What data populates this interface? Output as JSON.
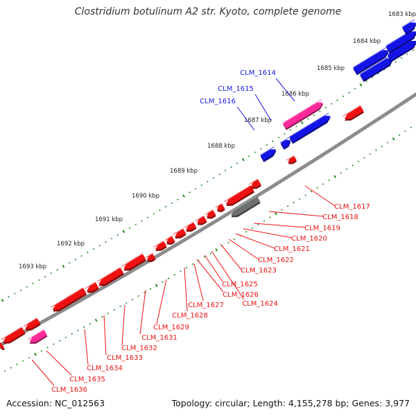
{
  "title": "Clostridium botulinum A2 str. Kyoto, complete genome",
  "accession": "Accession: NC_012563",
  "summary": "Topology: circular; Length: 4,155,278 bp; Genes: 3,977",
  "colors": {
    "backbone": "#8c8c8c",
    "tick": "#1e8a1e",
    "forward_gene": "#1414e6",
    "reverse_gene": "#ee1111",
    "rna_gene": "#ff2a9a",
    "pseudo_gene": "#6f6f6f"
  },
  "scale_ticks": [
    "1683 kbp",
    "1684 kbp",
    "1685 kbp",
    "1686 kbp",
    "1687 kbp",
    "1688 kbp",
    "1689 kbp",
    "1690 kbp",
    "1691 kbp",
    "1692 kbp",
    "1693 kbp"
  ],
  "forward_labels": [
    "CLM_1614",
    "CLM_1615",
    "CLM_1616"
  ],
  "reverse_labels": [
    "CLM_1617",
    "CLM_1618",
    "CLM_1619",
    "CLM_1620",
    "CLM_1621",
    "CLM_1622",
    "CLM_1623",
    "CLM_1624",
    "CLM_1625",
    "CLM_1626",
    "CLM_1627",
    "CLM_1628",
    "CLM_1629",
    "CLM_1631",
    "CLM_1632",
    "CLM_1633",
    "CLM_1634",
    "CLM_1635",
    "CLM_1636"
  ]
}
